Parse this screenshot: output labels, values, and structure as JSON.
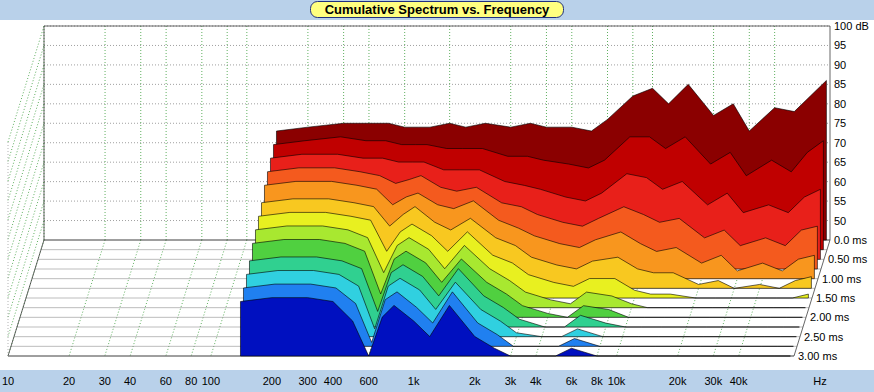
{
  "chart_data": {
    "type": "waterfall",
    "title": "Cumulative Spectrum vs. Frequency",
    "xlabel": "Hz",
    "log": "x",
    "grid": true,
    "xlim": [
      10,
      75000
    ],
    "xticks": [
      10,
      20,
      30,
      40,
      60,
      80,
      100,
      200,
      300,
      400,
      600,
      {
        "value": 1000,
        "label": "1k"
      },
      {
        "value": 2000,
        "label": "2k"
      },
      {
        "value": 3000,
        "label": "3k"
      },
      {
        "value": 4000,
        "label": "4k"
      },
      {
        "value": 6000,
        "label": "6k"
      },
      {
        "value": 8000,
        "label": "8k"
      },
      {
        "value": 10000,
        "label": "10k"
      },
      {
        "value": 20000,
        "label": "20k"
      },
      {
        "value": 30000,
        "label": "30k"
      },
      {
        "value": 40000,
        "label": "40k"
      }
    ],
    "ylim": [
      45,
      100
    ],
    "yticks": [
      {
        "value": 100,
        "label": "100 dB"
      },
      95,
      90,
      85,
      80,
      75,
      70,
      65,
      60,
      55,
      50
    ],
    "zlim": [
      0,
      3
    ],
    "zticks": [
      {
        "value": 0,
        "label": "0.0 ms"
      },
      {
        "value": 0.5,
        "label": "0.50 ms"
      },
      {
        "value": 1,
        "label": "1.00 ms"
      },
      {
        "value": 1.5,
        "label": "1.50 ms"
      },
      {
        "value": 2,
        "label": "2.00 ms"
      },
      {
        "value": 2.5,
        "label": "2.50 ms"
      },
      {
        "value": 3,
        "label": "3.00 ms"
      }
    ],
    "x": [
      140,
      200,
      300,
      400,
      500,
      600,
      700,
      800,
      1000,
      1200,
      1500,
      2000,
      2500,
      3000,
      4000,
      5000,
      6000,
      8000,
      10000,
      12000,
      15000,
      20000,
      25000,
      30000,
      40000,
      50000,
      60000,
      72000
    ],
    "series": [
      {
        "time": 0,
        "color": "#8b0000",
        "values": [
          73,
          74,
          75,
          75,
          75,
          74,
          74,
          74,
          75,
          74,
          75,
          74,
          75,
          74,
          74,
          73,
          76,
          82,
          84,
          80,
          85,
          77,
          80,
          73,
          79,
          78,
          82,
          86
        ]
      },
      {
        "time": 0.25,
        "color": "#c00000",
        "values": [
          72,
          73,
          74,
          73,
          73,
          72,
          72,
          72,
          71,
          71,
          71,
          69,
          69,
          68,
          67,
          66,
          68,
          74,
          74,
          71,
          74,
          67,
          70,
          64,
          68,
          65,
          70,
          73
        ]
      },
      {
        "time": 0.5,
        "color": "#e8201a",
        "values": [
          71,
          72,
          72,
          71,
          71,
          70,
          70,
          70,
          68,
          68,
          68,
          65,
          64,
          63,
          61,
          60,
          62,
          67,
          66,
          63,
          65,
          59,
          62,
          57,
          59,
          57,
          61,
          63
        ]
      },
      {
        "time": 0.75,
        "color": "#f45a1e",
        "values": [
          70,
          71,
          71,
          70,
          69,
          67,
          68,
          69,
          66,
          65,
          66,
          62,
          61,
          59,
          57,
          56,
          58,
          61,
          59,
          57,
          58,
          53,
          55,
          51,
          53,
          51,
          55,
          56
        ]
      },
      {
        "time": 1,
        "color": "#f8961e",
        "values": [
          69,
          70,
          70,
          69,
          68,
          64,
          66,
          67,
          64,
          63,
          65,
          60,
          58,
          56,
          54,
          53,
          55,
          57,
          54,
          52,
          53,
          49,
          51,
          47,
          49,
          47,
          50,
          51
        ]
      },
      {
        "time": 1.25,
        "color": "#f8c820",
        "values": [
          67,
          68,
          68,
          67,
          66,
          61,
          64,
          66,
          62,
          60,
          63,
          58,
          56,
          53,
          51,
          50,
          52,
          53,
          50,
          49,
          49,
          46,
          47,
          45,
          46,
          45,
          47,
          48
        ]
      },
      {
        "time": 1.5,
        "color": "#e8f020",
        "values": [
          66,
          67,
          67,
          66,
          65,
          57,
          62,
          64,
          61,
          57,
          62,
          56,
          54,
          51,
          49,
          48,
          50,
          50,
          47,
          46,
          46,
          45,
          45,
          45,
          45,
          45,
          45,
          46
        ]
      },
      {
        "time": 1.75,
        "color": "#a8e830",
        "values": [
          65,
          66,
          66,
          65,
          63,
          54,
          61,
          63,
          60,
          55,
          61,
          55,
          52,
          49,
          47,
          46,
          49,
          48,
          46,
          45,
          45,
          45,
          45,
          45,
          45,
          45,
          45,
          45
        ]
      },
      {
        "time": 2,
        "color": "#50d040",
        "values": [
          64,
          65,
          65,
          64,
          62,
          51,
          60,
          62,
          59,
          54,
          60,
          54,
          51,
          48,
          46,
          45,
          48,
          47,
          45,
          45,
          45,
          45,
          45,
          45,
          45,
          45,
          45,
          45
        ]
      },
      {
        "time": 2.25,
        "color": "#30d090",
        "values": [
          62,
          63,
          63,
          62,
          60,
          49,
          59,
          61,
          58,
          53,
          60,
          53,
          50,
          47,
          45,
          45,
          48,
          46,
          45,
          45,
          45,
          45,
          45,
          45,
          45,
          45,
          45,
          45
        ]
      },
      {
        "time": 2.5,
        "color": "#30d0e0",
        "values": [
          61,
          62,
          62,
          61,
          58,
          47,
          58,
          60,
          57,
          52,
          59,
          52,
          49,
          46,
          45,
          45,
          47,
          45,
          45,
          45,
          45,
          45,
          45,
          45,
          45,
          45,
          45,
          45
        ]
      },
      {
        "time": 2.75,
        "color": "#2080f0",
        "values": [
          60,
          61,
          61,
          60,
          56,
          46,
          57,
          59,
          55,
          51,
          59,
          51,
          48,
          45,
          45,
          45,
          47,
          45,
          45,
          45,
          45,
          45,
          45,
          45,
          45,
          45,
          45,
          45
        ]
      },
      {
        "time": 3,
        "color": "#0010c0",
        "values": [
          59,
          60,
          60,
          59,
          54,
          45,
          55,
          58,
          54,
          50,
          58,
          50,
          47,
          45,
          45,
          45,
          47,
          45,
          45,
          45,
          45,
          45,
          45,
          45,
          45,
          45,
          45,
          45
        ]
      }
    ]
  }
}
